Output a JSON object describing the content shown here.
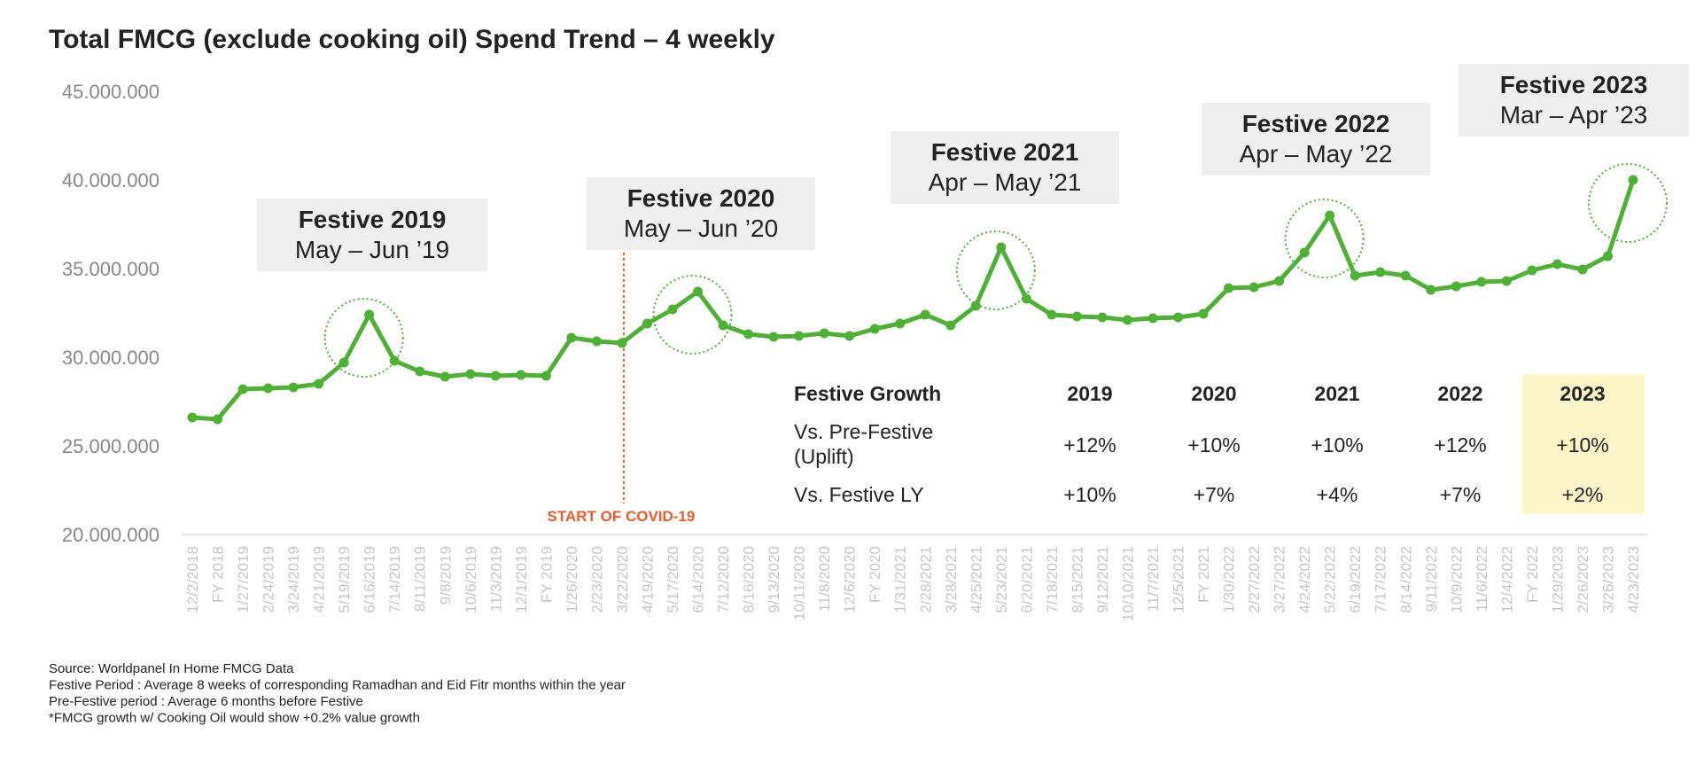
{
  "chart_data": {
    "type": "line",
    "title": "Total FMCG (exclude cooking oil) Spend Trend – 4 weekly",
    "color": "#4db233",
    "ylim": [
      20000000,
      45000000
    ],
    "yticks": [
      {
        "value": 45000000,
        "label": "45.000.000"
      },
      {
        "value": 40000000,
        "label": "40.000.000"
      },
      {
        "value": 35000000,
        "label": "35.000.000"
      },
      {
        "value": 30000000,
        "label": "30.000.000"
      },
      {
        "value": 25000000,
        "label": "25.000.000"
      },
      {
        "value": 20000000,
        "label": "20.000.000"
      }
    ],
    "categories": [
      "12/2/2018",
      "FY 2018",
      "1/27/2019",
      "2/24/2019",
      "3/24/2019",
      "4/21/2019",
      "5/19/2019",
      "6/16/2019",
      "7/14/2019",
      "8/11/2019",
      "9/8/2019",
      "10/6/2019",
      "11/3/2019",
      "12/1/2019",
      "FY 2019",
      "1/26/2020",
      "2/23/2020",
      "3/22/2020",
      "4/19/2020",
      "5/17/2020",
      "6/14/2020",
      "7/12/2020",
      "8/16/2020",
      "9/13/2020",
      "10/11/2020",
      "11/8/2020",
      "12/6/2020",
      "FY 2020",
      "1/31/2021",
      "2/28/2021",
      "3/28/2021",
      "4/25/2021",
      "5/23/2021",
      "6/20/2021",
      "7/18/2021",
      "8/15/2021",
      "9/12/2021",
      "10/10/2021",
      "11/7/2021",
      "12/5/2021",
      "FY 2021",
      "1/30/2022",
      "2/27/2022",
      "3/27/2022",
      "4/24/2022",
      "5/22/2022",
      "6/19/2022",
      "7/17/2022",
      "8/14/2022",
      "9/11/2022",
      "10/9/2022",
      "11/6/2022",
      "12/4/2022",
      "FY 2022",
      "1/29/2023",
      "2/26/2023",
      "3/26/2023",
      "4/23/2023"
    ],
    "values": [
      26600000,
      26500000,
      28200000,
      28250000,
      28300000,
      28500000,
      29700000,
      32400000,
      29800000,
      29200000,
      28900000,
      29050000,
      28950000,
      29000000,
      28950000,
      31100000,
      30900000,
      30800000,
      31900000,
      32700000,
      33700000,
      31800000,
      31300000,
      31150000,
      31200000,
      31350000,
      31200000,
      31600000,
      31900000,
      32400000,
      31800000,
      32900000,
      36200000,
      33300000,
      32400000,
      32300000,
      32250000,
      32100000,
      32200000,
      32250000,
      32450000,
      33900000,
      33950000,
      34300000,
      35900000,
      38000000,
      34600000,
      34800000,
      34600000,
      33800000,
      34000000,
      34250000,
      34300000,
      34900000,
      35250000,
      34950000,
      35700000,
      40000000
    ],
    "festive_boxes": [
      {
        "title": "Festive 2019",
        "subtitle": "May – Jun ’19",
        "peak_index": 7
      },
      {
        "title": "Festive 2020",
        "subtitle": "May – Jun ’20",
        "peak_index": 20
      },
      {
        "title": "Festive 2021",
        "subtitle": "Apr – May ’21",
        "peak_index": 32
      },
      {
        "title": "Festive 2022",
        "subtitle": "Apr – May ’22",
        "peak_index": 45
      },
      {
        "title": "Festive 2023",
        "subtitle": "Mar – Apr ’23",
        "peak_index": 57
      }
    ],
    "covid_marker": {
      "label": "START OF COVID-19",
      "color": "#f15a24",
      "after_index": 17
    },
    "growth_table": {
      "header": [
        "Festive Growth",
        "2019",
        "2020",
        "2021",
        "2022",
        "2023"
      ],
      "rows": [
        {
          "label_lines": [
            "Vs. Pre-Festive",
            "(Uplift)"
          ],
          "values": [
            "+12%",
            "+10%",
            "+10%",
            "+12%",
            "+10%"
          ]
        },
        {
          "label_lines": [
            "Vs. Festive LY"
          ],
          "values": [
            "+10%",
            "+7%",
            "+4%",
            "+7%",
            "+2%"
          ]
        }
      ],
      "highlight_color": "#fdf6c8"
    },
    "notes": [
      "Source: Worldpanel In Home FMCG Data",
      "Festive Period : Average 8 weeks of corresponding Ramadhan and Eid Fitr months within the year",
      "Pre-Festive period : Average 6 months before Festive",
      "*FMCG growth w/ Cooking Oil would show +0.2% value growth"
    ]
  }
}
